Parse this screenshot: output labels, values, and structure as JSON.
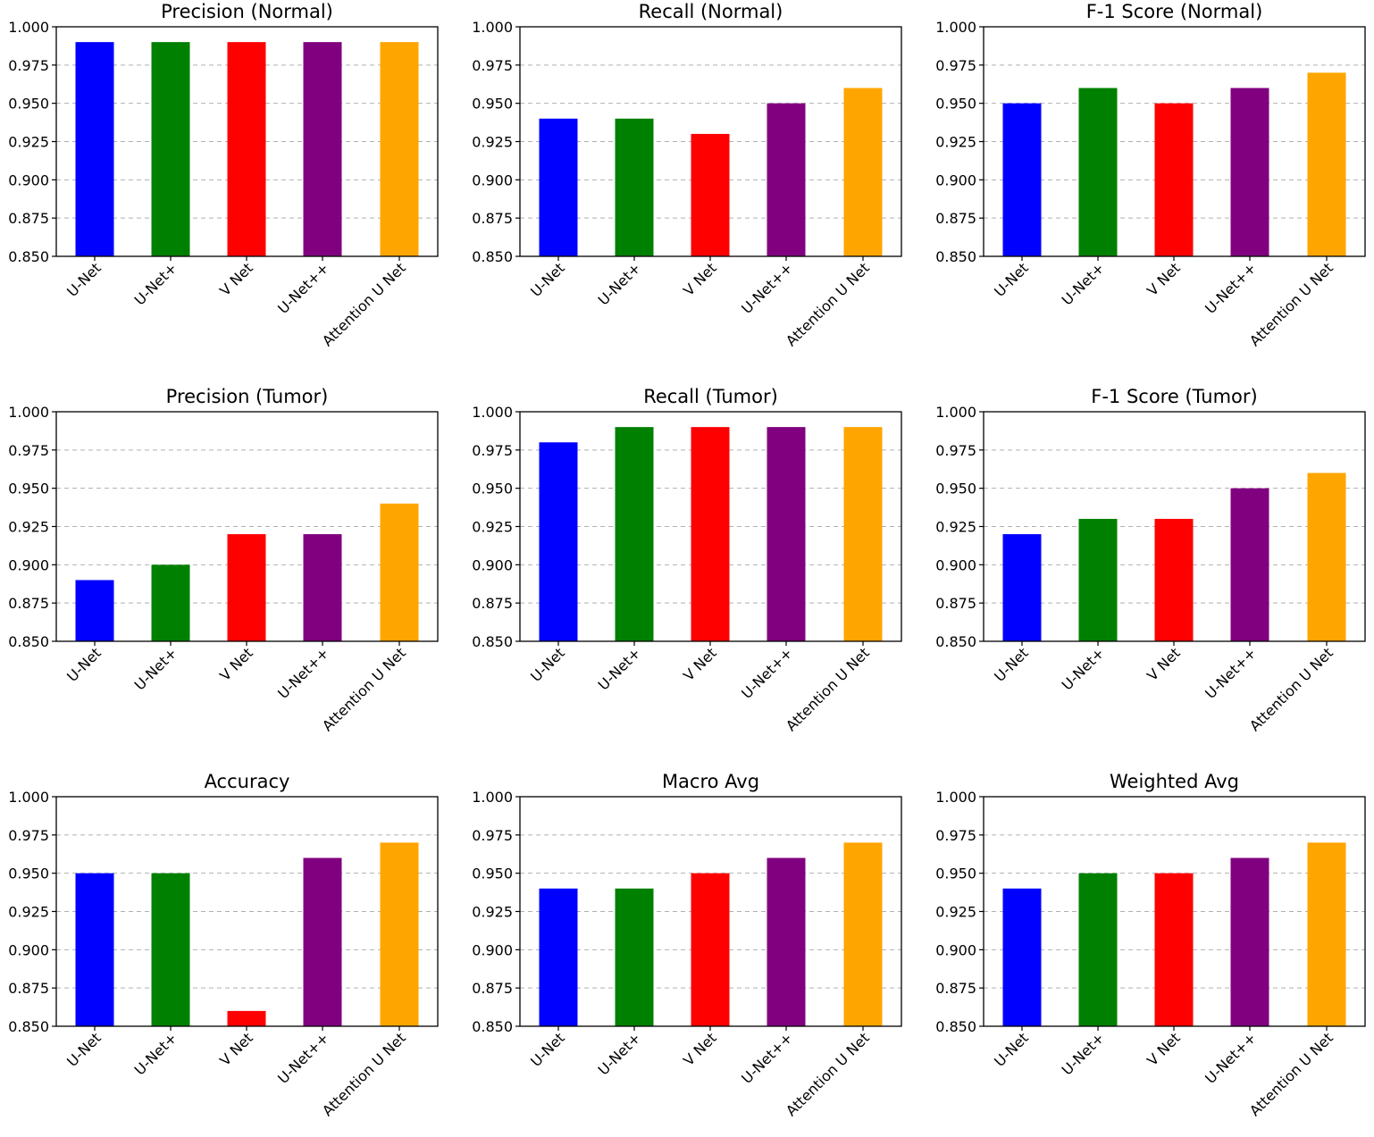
{
  "figure": {
    "colors": [
      "#0000ff",
      "#008000",
      "#ff0000",
      "#800080",
      "#ffa500"
    ],
    "y_tick_labels": [
      "0.850",
      "0.875",
      "0.900",
      "0.925",
      "0.950",
      "0.975",
      "1.000"
    ]
  },
  "chart_data": [
    {
      "type": "bar",
      "title": "Precision (Normal)",
      "categories": [
        "U-Net",
        "U-Net+",
        "V Net",
        "U-Net++",
        "Attention U Net"
      ],
      "values": [
        0.99,
        0.99,
        0.99,
        0.99,
        0.99
      ],
      "ylim": [
        0.85,
        1.0
      ],
      "grid": true,
      "xlabel": "",
      "ylabel": ""
    },
    {
      "type": "bar",
      "title": "Recall (Normal)",
      "categories": [
        "U-Net",
        "U-Net+",
        "V Net",
        "U-Net++",
        "Attention U Net"
      ],
      "values": [
        0.94,
        0.94,
        0.93,
        0.95,
        0.96
      ],
      "ylim": [
        0.85,
        1.0
      ],
      "grid": true,
      "xlabel": "",
      "ylabel": ""
    },
    {
      "type": "bar",
      "title": "F-1 Score (Normal)",
      "categories": [
        "U-Net",
        "U-Net+",
        "V Net",
        "U-Net++",
        "Attention U Net"
      ],
      "values": [
        0.95,
        0.96,
        0.95,
        0.96,
        0.97
      ],
      "ylim": [
        0.85,
        1.0
      ],
      "grid": true,
      "xlabel": "",
      "ylabel": ""
    },
    {
      "type": "bar",
      "title": "Precision (Tumor)",
      "categories": [
        "U-Net",
        "U-Net+",
        "V Net",
        "U-Net++",
        "Attention U Net"
      ],
      "values": [
        0.89,
        0.9,
        0.92,
        0.92,
        0.94
      ],
      "ylim": [
        0.85,
        1.0
      ],
      "grid": true,
      "xlabel": "",
      "ylabel": ""
    },
    {
      "type": "bar",
      "title": "Recall (Tumor)",
      "categories": [
        "U-Net",
        "U-Net+",
        "V Net",
        "U-Net++",
        "Attention U Net"
      ],
      "values": [
        0.98,
        0.99,
        0.99,
        0.99,
        0.99
      ],
      "ylim": [
        0.85,
        1.0
      ],
      "grid": true,
      "xlabel": "",
      "ylabel": ""
    },
    {
      "type": "bar",
      "title": "F-1 Score (Tumor)",
      "categories": [
        "U-Net",
        "U-Net+",
        "V Net",
        "U-Net++",
        "Attention U Net"
      ],
      "values": [
        0.92,
        0.93,
        0.93,
        0.95,
        0.96
      ],
      "ylim": [
        0.85,
        1.0
      ],
      "grid": true,
      "xlabel": "",
      "ylabel": ""
    },
    {
      "type": "bar",
      "title": "Accuracy",
      "categories": [
        "U-Net",
        "U-Net+",
        "V Net",
        "U-Net++",
        "Attention U Net"
      ],
      "values": [
        0.95,
        0.95,
        0.86,
        0.96,
        0.97
      ],
      "ylim": [
        0.85,
        1.0
      ],
      "grid": true,
      "xlabel": "",
      "ylabel": ""
    },
    {
      "type": "bar",
      "title": "Macro Avg",
      "categories": [
        "U-Net",
        "U-Net+",
        "V Net",
        "U-Net++",
        "Attention U Net"
      ],
      "values": [
        0.94,
        0.94,
        0.95,
        0.96,
        0.97
      ],
      "ylim": [
        0.85,
        1.0
      ],
      "grid": true,
      "xlabel": "",
      "ylabel": ""
    },
    {
      "type": "bar",
      "title": "Weighted Avg",
      "categories": [
        "U-Net",
        "U-Net+",
        "V Net",
        "U-Net++",
        "Attention U Net"
      ],
      "values": [
        0.94,
        0.95,
        0.95,
        0.96,
        0.97
      ],
      "ylim": [
        0.85,
        1.0
      ],
      "grid": true,
      "xlabel": "",
      "ylabel": ""
    }
  ]
}
